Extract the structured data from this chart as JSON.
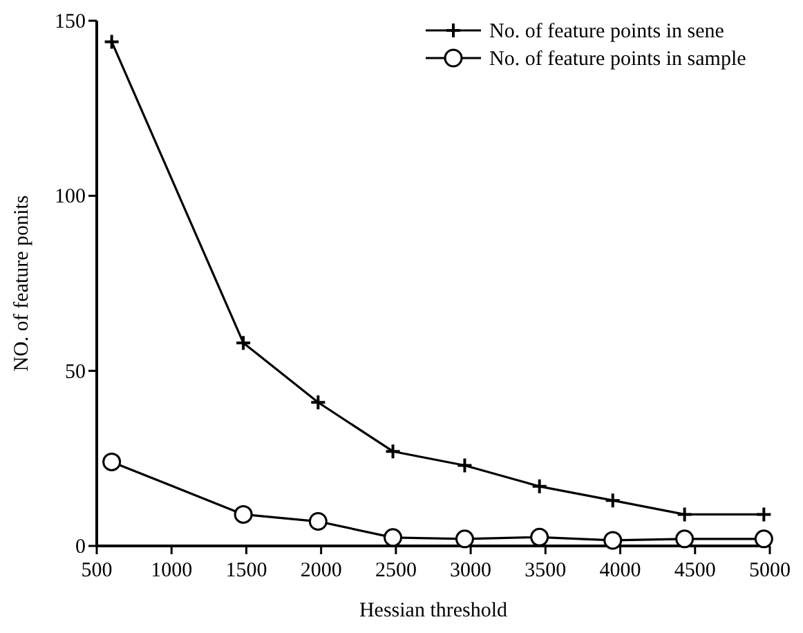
{
  "chart_data": {
    "type": "line",
    "xlabel": "Hessian threshold",
    "ylabel": "NO. of feature ponits",
    "x": [
      600,
      1480,
      1980,
      2480,
      2960,
      3460,
      3950,
      4430,
      4960
    ],
    "series": [
      {
        "name": "No. of feature points in sene",
        "color": "#000000",
        "marker": "cross",
        "values": [
          144,
          58,
          41,
          27,
          23,
          17,
          13,
          9,
          9
        ]
      },
      {
        "name": "No. of feature points in sample",
        "color": "#000000",
        "marker": "circle",
        "values": [
          24,
          9,
          7,
          2.4,
          2,
          2.5,
          1.6,
          2,
          2
        ]
      }
    ],
    "xlim": [
      500,
      5000
    ],
    "xticks": [
      500,
      1000,
      1500,
      2000,
      2500,
      3000,
      3500,
      4000,
      4500,
      5000
    ],
    "ylim": [
      0,
      150
    ],
    "yticks": [
      0,
      50,
      100,
      150
    ],
    "grid": false,
    "legend": "top right"
  }
}
